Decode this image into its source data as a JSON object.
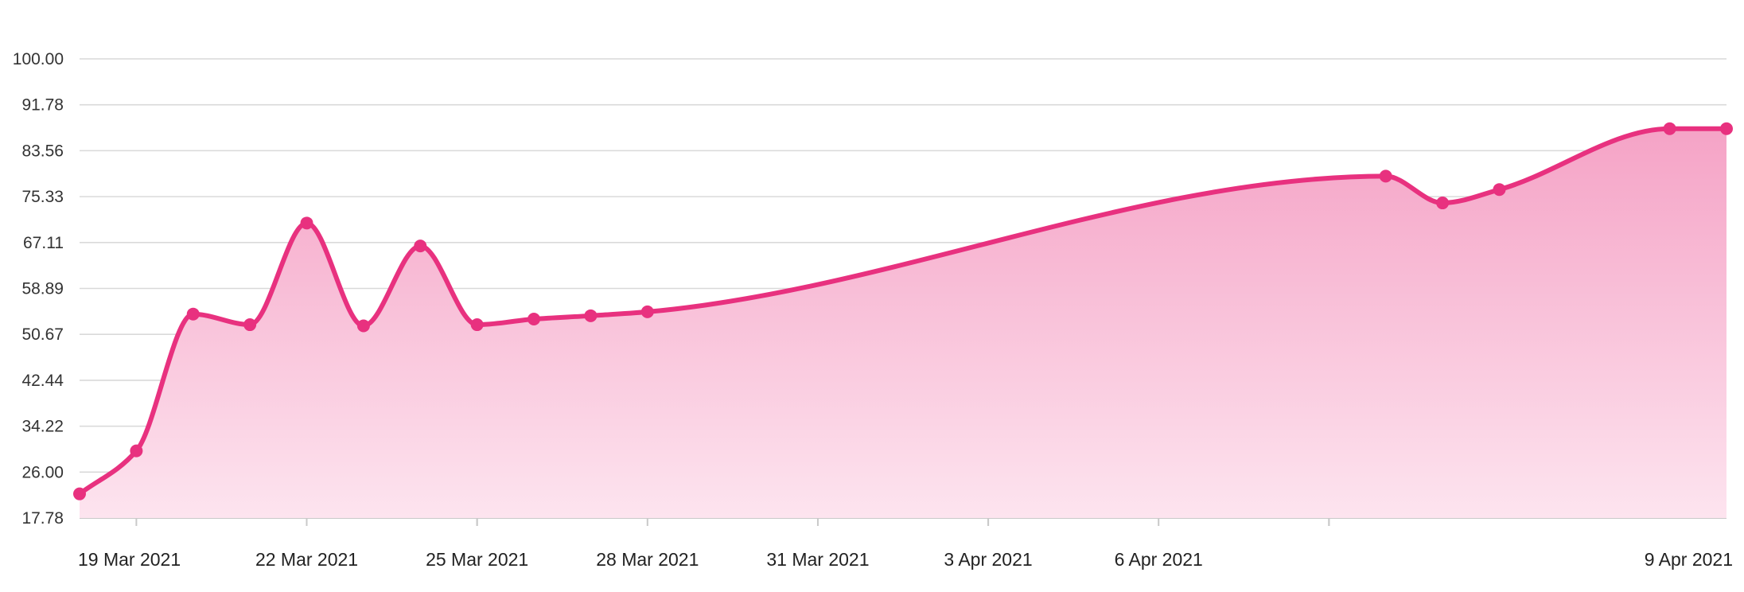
{
  "chart_data": {
    "type": "area",
    "title": "",
    "xlabel": "",
    "ylabel": "",
    "ylim": [
      17.78,
      100.0
    ],
    "xlim": [
      "2021-03-19",
      "2021-04-17"
    ],
    "y_ticks": [
      "100.00",
      "91.78",
      "83.56",
      "75.33",
      "67.11",
      "58.89",
      "50.67",
      "42.44",
      "34.22",
      "26.00",
      "17.78"
    ],
    "x_ticks": [
      {
        "date": "2021-03-20",
        "label": "19 Mar 2021"
      },
      {
        "date": "2021-03-23",
        "label": "22 Mar 2021"
      },
      {
        "date": "2021-03-26",
        "label": "25 Mar 2021"
      },
      {
        "date": "2021-03-29",
        "label": "28 Mar 2021"
      },
      {
        "date": "2021-04-01",
        "label": "31 Mar 2021"
      },
      {
        "date": "2021-04-04",
        "label": "3 Apr 2021"
      },
      {
        "date": "2021-04-07",
        "label": "6 Apr 2021"
      },
      {
        "date": "2021-04-10",
        "label": "9 Apr 2021"
      }
    ],
    "x_minor_ticks": [
      "2021-03-26",
      "2021-04-04",
      "2021-04-10"
    ],
    "grid": true,
    "legend": "none",
    "colors": {
      "line": "#e8317f",
      "fill_top": "#f5a3c6",
      "fill_bottom": "#fde4ef",
      "grid": "#d9d9d9"
    },
    "series": [
      {
        "points": [
          {
            "x": "2021-03-19",
            "y": 22.1
          },
          {
            "x": "2021-03-20",
            "y": 29.8
          },
          {
            "x": "2021-03-21",
            "y": 54.3
          },
          {
            "x": "2021-03-22",
            "y": 52.4
          },
          {
            "x": "2021-03-23",
            "y": 70.6
          },
          {
            "x": "2021-03-24",
            "y": 52.2
          },
          {
            "x": "2021-03-25",
            "y": 66.5
          },
          {
            "x": "2021-03-26",
            "y": 52.4
          },
          {
            "x": "2021-03-27",
            "y": 53.4
          },
          {
            "x": "2021-03-28",
            "y": 54.0
          },
          {
            "x": "2021-03-29",
            "y": 54.7
          },
          {
            "x": "2021-04-11",
            "y": 79.0
          },
          {
            "x": "2021-04-12",
            "y": 74.2
          },
          {
            "x": "2021-04-13",
            "y": 76.6
          },
          {
            "x": "2021-04-16",
            "y": 87.5
          },
          {
            "x": "2021-04-17",
            "y": 87.5
          }
        ]
      }
    ]
  }
}
